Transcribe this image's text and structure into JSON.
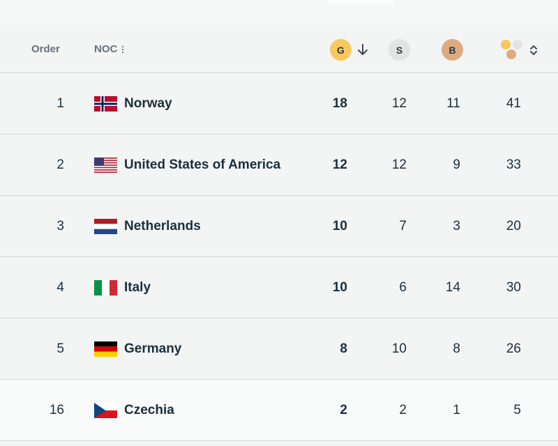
{
  "header": {
    "order_label": "Order",
    "noc_label": "NOC",
    "gold_label": "G",
    "silver_label": "S",
    "bronze_label": "B",
    "sort_icon": "arrow-down-icon",
    "total_sort_icon": "chevron-updown-icon",
    "total_icon": "medals-total-icon"
  },
  "colors": {
    "gold": "#f7c85c",
    "silver": "#e3e3e3",
    "bronze": "#ddab7f",
    "text": "#1a2f3d",
    "header_text": "#66727b",
    "divider": "#cfd5d8"
  },
  "rows": [
    {
      "order": "1",
      "name": "Norway",
      "flag": "flag-norway",
      "gold": "18",
      "silver": "12",
      "bronze": "11",
      "total": "41"
    },
    {
      "order": "2",
      "name": "United States of America",
      "flag": "flag-usa",
      "gold": "12",
      "silver": "12",
      "bronze": "9",
      "total": "33"
    },
    {
      "order": "3",
      "name": "Netherlands",
      "flag": "flag-netherlands",
      "gold": "10",
      "silver": "7",
      "bronze": "3",
      "total": "20"
    },
    {
      "order": "4",
      "name": "Italy",
      "flag": "flag-italy",
      "gold": "10",
      "silver": "6",
      "bronze": "14",
      "total": "30"
    },
    {
      "order": "5",
      "name": "Germany",
      "flag": "flag-germany",
      "gold": "8",
      "silver": "10",
      "bronze": "8",
      "total": "26"
    },
    {
      "order": "16",
      "name": "Czechia",
      "flag": "flag-czechia",
      "gold": "2",
      "silver": "2",
      "bronze": "1",
      "total": "5"
    }
  ]
}
